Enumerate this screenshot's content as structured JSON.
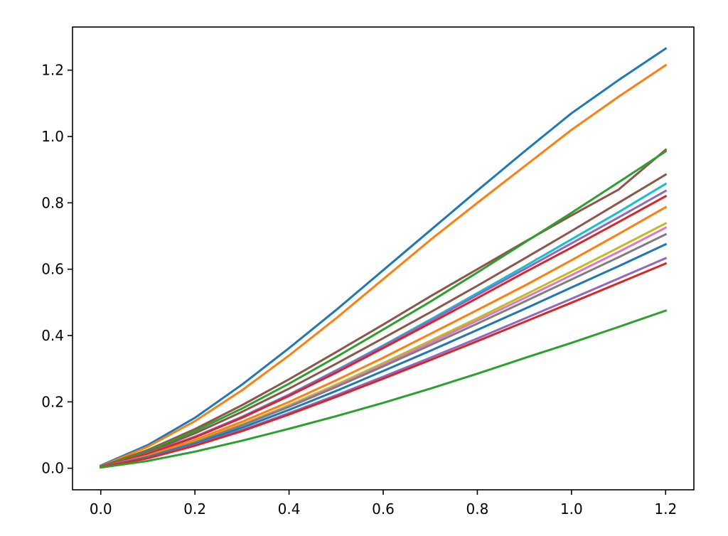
{
  "chart_data": {
    "type": "line",
    "title": "",
    "xlabel": "",
    "ylabel": "",
    "xlim": [
      -0.06,
      1.26
    ],
    "ylim": [
      -0.065,
      1.33
    ],
    "grid": false,
    "legend": "none",
    "x_ticks": [
      0.0,
      0.2,
      0.4,
      0.6,
      0.8,
      1.0,
      1.2
    ],
    "x_tick_labels": [
      "0.0",
      "0.2",
      "0.4",
      "0.6",
      "0.8",
      "1.0",
      "1.2"
    ],
    "y_ticks": [
      0.0,
      0.2,
      0.4,
      0.6,
      0.8,
      1.0,
      1.2
    ],
    "y_tick_labels": [
      "0.0",
      "0.2",
      "0.4",
      "0.6",
      "0.8",
      "1.0",
      "1.2"
    ],
    "x": [
      0.0,
      0.1,
      0.2,
      0.3,
      0.4,
      0.5,
      0.6,
      0.7,
      0.8,
      0.9,
      1.0,
      1.1,
      1.2
    ],
    "series": [
      {
        "color": "#1f77b4",
        "values": [
          0.008,
          0.07,
          0.152,
          0.252,
          0.362,
          0.477,
          0.597,
          0.717,
          0.837,
          0.955,
          1.07,
          1.17,
          1.265
        ]
      },
      {
        "color": "#ff7f0e",
        "values": [
          0.006,
          0.065,
          0.142,
          0.235,
          0.34,
          0.452,
          0.57,
          0.688,
          0.8,
          0.91,
          1.02,
          1.12,
          1.215
        ]
      },
      {
        "color": "#8c564b",
        "values": [
          0.005,
          0.055,
          0.118,
          0.19,
          0.268,
          0.35,
          0.433,
          0.518,
          0.6,
          0.682,
          0.762,
          0.84,
          0.96
        ]
      },
      {
        "color": "#2ca02c",
        "values": [
          0.005,
          0.052,
          0.112,
          0.18,
          0.255,
          0.335,
          0.418,
          0.502,
          0.59,
          0.68,
          0.77,
          0.862,
          0.955
        ]
      },
      {
        "color": "#8c564b",
        "values": [
          0.004,
          0.048,
          0.105,
          0.17,
          0.24,
          0.315,
          0.392,
          0.47,
          0.55,
          0.632,
          0.715,
          0.8,
          0.885
        ]
      },
      {
        "color": "#17becf",
        "values": [
          0.004,
          0.044,
          0.095,
          0.155,
          0.222,
          0.295,
          0.37,
          0.448,
          0.528,
          0.608,
          0.69,
          0.772,
          0.857
        ]
      },
      {
        "color": "#9467bd",
        "values": [
          0.004,
          0.044,
          0.095,
          0.155,
          0.222,
          0.294,
          0.368,
          0.444,
          0.522,
          0.6,
          0.678,
          0.756,
          0.836
        ]
      },
      {
        "color": "#d62728",
        "values": [
          0.004,
          0.043,
          0.093,
          0.152,
          0.218,
          0.288,
          0.362,
          0.437,
          0.513,
          0.59,
          0.665,
          0.742,
          0.82
        ]
      },
      {
        "color": "#ff7f0e",
        "values": [
          0.003,
          0.038,
          0.085,
          0.14,
          0.2,
          0.265,
          0.333,
          0.405,
          0.477,
          0.55,
          0.627,
          0.706,
          0.787
        ]
      },
      {
        "color": "#bcbd22",
        "values": [
          0.003,
          0.036,
          0.08,
          0.132,
          0.19,
          0.252,
          0.317,
          0.384,
          0.452,
          0.522,
          0.593,
          0.665,
          0.738
        ]
      },
      {
        "color": "#e377c2",
        "values": [
          0.003,
          0.035,
          0.078,
          0.13,
          0.187,
          0.248,
          0.312,
          0.378,
          0.445,
          0.513,
          0.582,
          0.652,
          0.725
        ]
      },
      {
        "color": "#7f7f7f",
        "values": [
          0.003,
          0.035,
          0.078,
          0.129,
          0.185,
          0.245,
          0.307,
          0.371,
          0.436,
          0.502,
          0.569,
          0.636,
          0.705
        ]
      },
      {
        "color": "#1f77b4",
        "values": [
          0.003,
          0.033,
          0.074,
          0.122,
          0.176,
          0.233,
          0.293,
          0.354,
          0.417,
          0.48,
          0.545,
          0.609,
          0.675
        ]
      },
      {
        "color": "#9467bd",
        "values": [
          0.003,
          0.031,
          0.07,
          0.115,
          0.166,
          0.22,
          0.276,
          0.333,
          0.391,
          0.451,
          0.511,
          0.572,
          0.633
        ]
      },
      {
        "color": "#d62728",
        "values": [
          0.003,
          0.03,
          0.068,
          0.112,
          0.162,
          0.215,
          0.27,
          0.326,
          0.383,
          0.441,
          0.499,
          0.558,
          0.617
        ]
      },
      {
        "color": "#2ca02c",
        "values": [
          0.002,
          0.022,
          0.05,
          0.083,
          0.119,
          0.157,
          0.197,
          0.24,
          0.285,
          0.332,
          0.378,
          0.426,
          0.475
        ]
      }
    ]
  }
}
